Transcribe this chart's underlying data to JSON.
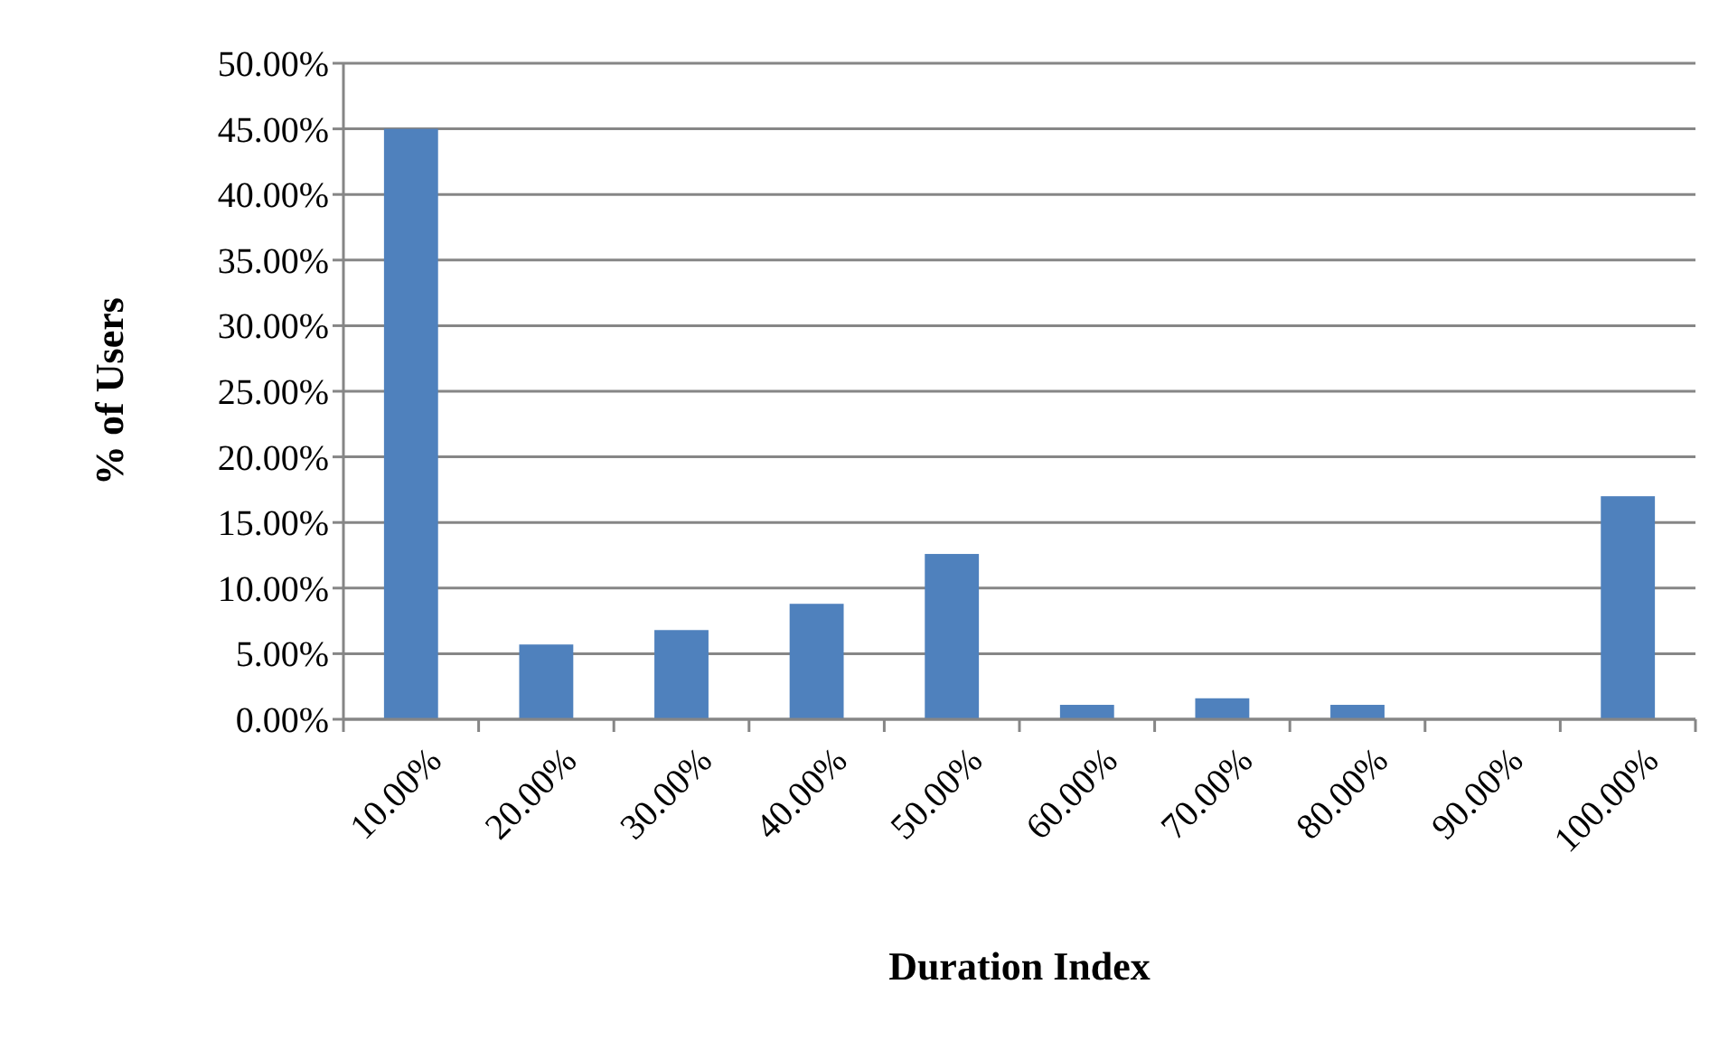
{
  "chart_data": {
    "type": "bar",
    "xlabel": "Duration Index",
    "ylabel": "% of Users",
    "categories": [
      "10.00%",
      "20.00%",
      "30.00%",
      "40.00%",
      "50.00%",
      "60.00%",
      "70.00%",
      "80.00%",
      "90.00%",
      "100.00%"
    ],
    "values": [
      45.0,
      5.7,
      6.8,
      8.8,
      12.6,
      1.1,
      1.6,
      1.1,
      0,
      17.0
    ],
    "color": "#4f81bd",
    "ylim": [
      0,
      50
    ],
    "yticks": [
      {
        "value": 0,
        "label": "0.00%"
      },
      {
        "value": 5,
        "label": "5.00%"
      },
      {
        "value": 10,
        "label": "10.00%"
      },
      {
        "value": 15,
        "label": "15.00%"
      },
      {
        "value": 20,
        "label": "20.00%"
      },
      {
        "value": 25,
        "label": "25.00%"
      },
      {
        "value": 30,
        "label": "30.00%"
      },
      {
        "value": 35,
        "label": "35.00%"
      },
      {
        "value": 40,
        "label": "40.00%"
      },
      {
        "value": 45,
        "label": "45.00%"
      },
      {
        "value": 50,
        "label": "50.00%"
      }
    ],
    "grid": "y"
  }
}
